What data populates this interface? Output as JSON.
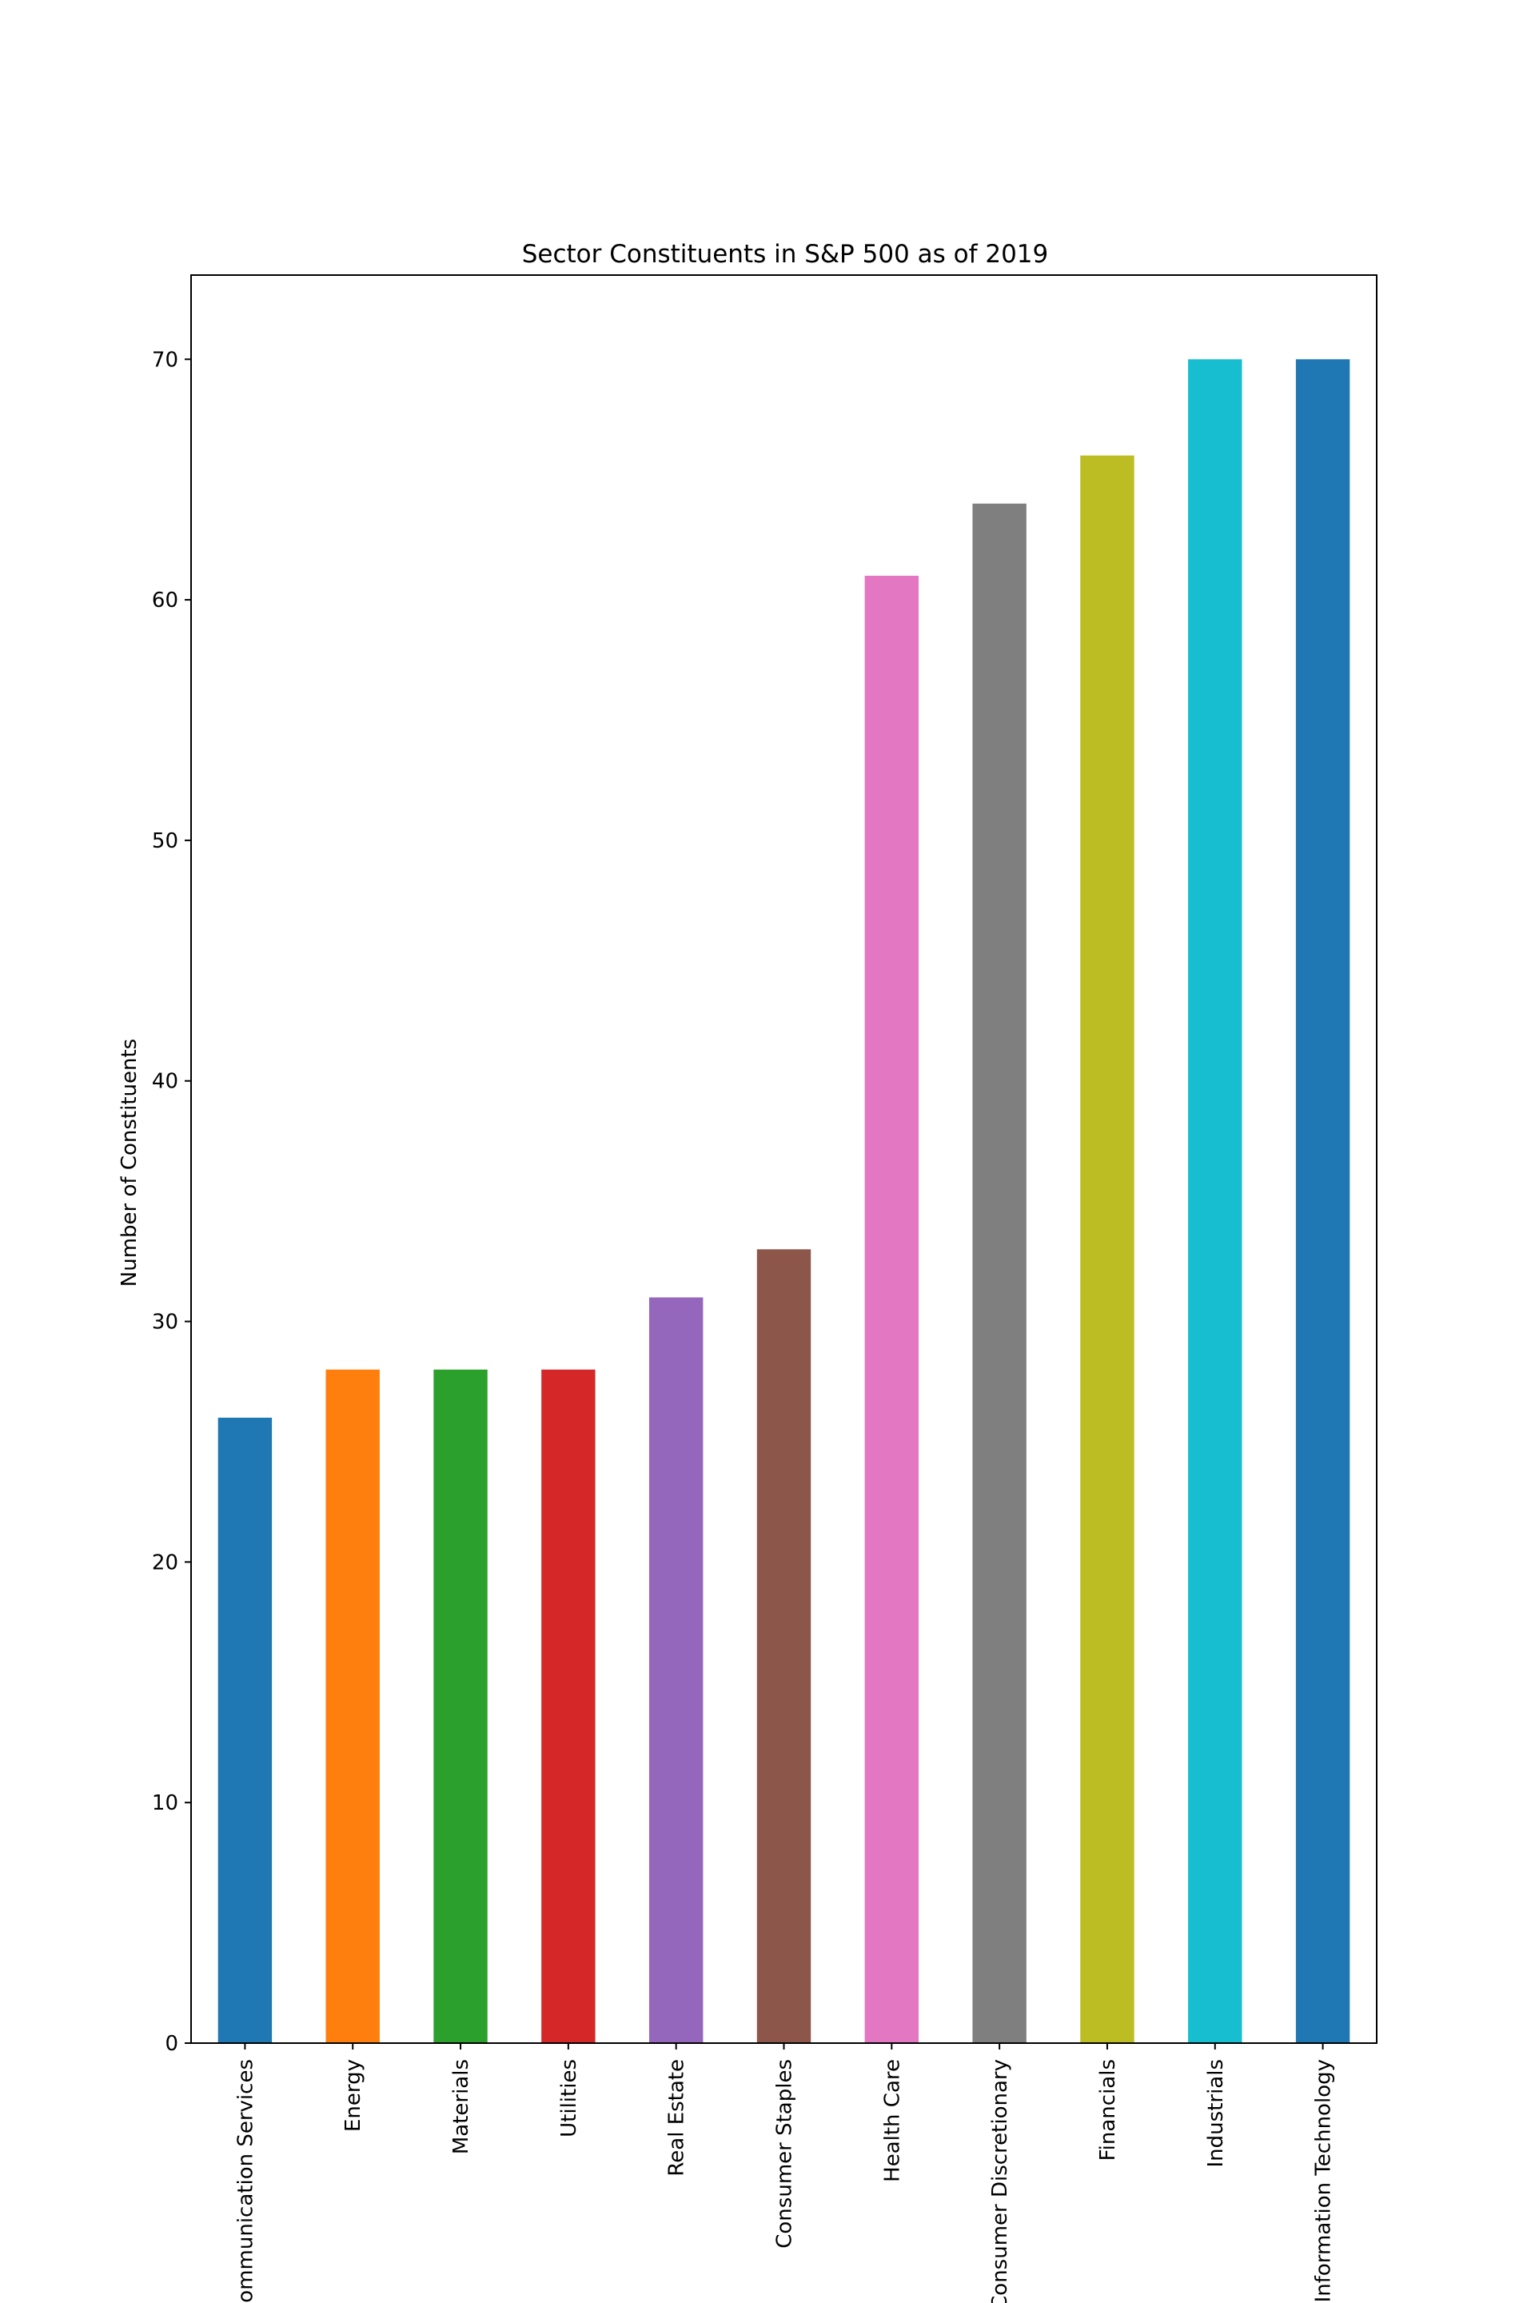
{
  "chart_data": {
    "type": "bar",
    "title": "Sector Constituents in S&P 500 as of 2019",
    "xlabel": "",
    "ylabel": "Number of Constituents",
    "ylim": [
      0,
      73.5
    ],
    "yticks": [
      0,
      10,
      20,
      30,
      40,
      50,
      60,
      70
    ],
    "grid": false,
    "legend": "none",
    "categories": [
      "Communication Services",
      "Energy",
      "Materials",
      "Utilities",
      "Real Estate",
      "Consumer Staples",
      "Health Care",
      "Consumer Discretionary",
      "Financials",
      "Industrials",
      "Information Technology"
    ],
    "values": [
      26,
      28,
      28,
      28,
      31,
      33,
      61,
      64,
      66,
      70,
      70
    ],
    "colors": [
      "#1f77b4",
      "#ff7f0e",
      "#2ca02c",
      "#d62728",
      "#9467bd",
      "#8c564b",
      "#e377c2",
      "#7f7f7f",
      "#bcbd22",
      "#17becf",
      "#1f77b4"
    ]
  }
}
